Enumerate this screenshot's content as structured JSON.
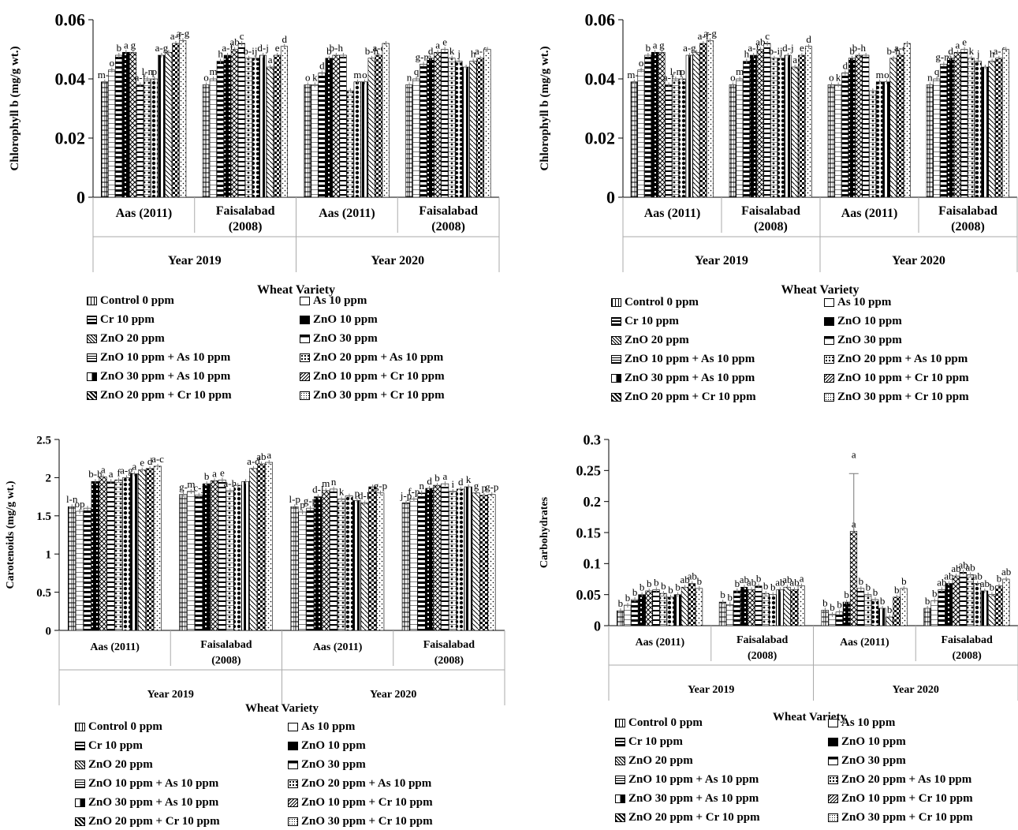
{
  "legend_labels": [
    "Control 0 ppm",
    "As 10 ppm",
    "Cr 10 ppm",
    "ZnO 10 ppm",
    "ZnO 20 ppm",
    "ZnO 30 ppm",
    "ZnO 10 ppm + As 10 ppm",
    "ZnO 20 ppm + As 10 ppm",
    "ZnO 30 ppm + As 10 ppm",
    "ZnO 10 ppm + Cr 10 ppm",
    "ZnO 20 ppm + Cr 10 ppm",
    "ZnO 30 ppm + Cr 10 ppm"
  ],
  "chart_data": [
    {
      "type": "bar",
      "ylabel": "Chlorophyll b (mg/g wt.)",
      "xlabel": "Wheat Variety",
      "ylim": [
        0,
        0.06
      ],
      "yticks": [
        "0",
        "0.02",
        "0.04",
        "0.06"
      ],
      "groups": [
        {
          "variety": "Aas (2011)",
          "year": "Year 2019",
          "values": [
            0.039,
            0.043,
            0.048,
            0.049,
            0.049,
            0.038,
            0.04,
            0.04,
            0.048,
            0.049,
            0.052,
            0.053
          ],
          "letters": [
            "m-i",
            "o",
            "b",
            "a",
            "g",
            "a-f",
            "l-n",
            "p",
            "a-g",
            "",
            "a-f",
            "a-g"
          ]
        },
        {
          "variety": "Faisalabad (2008)",
          "year": "Year 2019",
          "values": [
            0.038,
            0.04,
            0.046,
            0.048,
            0.05,
            0.052,
            0.047,
            0.047,
            0.048,
            0.044,
            0.048,
            0.051
          ],
          "letters": [
            "o",
            "m",
            "h",
            "a-f",
            "ab",
            "c",
            "b-i",
            "j",
            "d-j",
            "a",
            "e",
            "d"
          ]
        },
        {
          "variety": "Aas (2011)",
          "year": "Year 2020",
          "values": [
            0.038,
            0.038,
            0.042,
            0.047,
            0.048,
            0.048,
            0.036,
            0.039,
            0.039,
            0.047,
            0.048,
            0.052
          ],
          "letters": [
            "o",
            "k",
            "d",
            "b",
            "b-h",
            "",
            "",
            "m",
            "o",
            "b-h",
            "a-c",
            ""
          ]
        },
        {
          "variety": "Faisalabad (2008)",
          "year": "Year 2020",
          "values": [
            0.038,
            0.04,
            0.045,
            0.047,
            0.049,
            0.05,
            0.047,
            0.046,
            0.044,
            0.046,
            0.047,
            0.05
          ],
          "letters": [
            "n",
            "q",
            "g-m",
            "d",
            "a",
            "e",
            "k",
            "j",
            "",
            "h",
            "a-f",
            ""
          ]
        }
      ]
    },
    {
      "type": "bar",
      "ylabel": "Chlorophyll b (mg/g wt.)",
      "xlabel": "Wheat Variety",
      "ylim": [
        0,
        0.06
      ],
      "yticks": [
        "0",
        "0.02",
        "0.04",
        "0.06"
      ],
      "groups": [
        {
          "variety": "Aas (2011)",
          "year": "Year 2019",
          "values": [
            0.039,
            0.043,
            0.048,
            0.049,
            0.049,
            0.038,
            0.04,
            0.04,
            0.048,
            0.049,
            0.052,
            0.053
          ],
          "letters": [
            "m-i",
            "o",
            "b",
            "a",
            "g",
            "a-f",
            "l-n",
            "p",
            "a-g",
            "",
            "a-f",
            "a-g"
          ]
        },
        {
          "variety": "Faisalabad (2008)",
          "year": "Year 2019",
          "values": [
            0.038,
            0.04,
            0.046,
            0.048,
            0.05,
            0.052,
            0.047,
            0.047,
            0.048,
            0.044,
            0.048,
            0.051
          ],
          "letters": [
            "o",
            "m",
            "h",
            "a-f",
            "ab",
            "c",
            "b-i",
            "j",
            "d-j",
            "a",
            "e",
            "d"
          ]
        },
        {
          "variety": "Aas (2011)",
          "year": "Year 2020",
          "values": [
            0.038,
            0.038,
            0.042,
            0.047,
            0.048,
            0.048,
            0.036,
            0.039,
            0.039,
            0.047,
            0.048,
            0.052
          ],
          "letters": [
            "o",
            "k",
            "d",
            "b",
            "b-h",
            "",
            "",
            "m",
            "o",
            "b-h",
            "a-c",
            ""
          ]
        },
        {
          "variety": "Faisalabad (2008)",
          "year": "Year 2020",
          "values": [
            0.038,
            0.04,
            0.045,
            0.047,
            0.049,
            0.05,
            0.047,
            0.046,
            0.044,
            0.046,
            0.047,
            0.05
          ],
          "letters": [
            "n",
            "q",
            "g-m",
            "d",
            "a",
            "e",
            "k",
            "j",
            "",
            "h",
            "a-f",
            ""
          ]
        }
      ]
    },
    {
      "type": "bar",
      "ylabel": "Carotenoids (mg/g wt.)",
      "xlabel": "Wheat Variety",
      "ylim": [
        0,
        2.5
      ],
      "yticks": [
        "0",
        "0.5",
        "1",
        "1.5",
        "2",
        "2.5"
      ],
      "groups": [
        {
          "variety": "Aas (2011)",
          "year": "Year 2019",
          "values": [
            1.62,
            1.56,
            1.6,
            1.95,
            2.01,
            1.95,
            1.97,
            2.0,
            2.05,
            2.1,
            2.12,
            2.15
          ],
          "letters": [
            "l-n",
            "op",
            "",
            "b-h",
            "a",
            "a",
            "f",
            "a-g",
            "a",
            "e",
            "d",
            "a-c"
          ]
        },
        {
          "variety": "Faisalabad (2008)",
          "year": "Year 2019",
          "values": [
            1.78,
            1.82,
            1.77,
            1.92,
            1.96,
            1.97,
            1.83,
            1.9,
            1.95,
            2.12,
            2.18,
            2.2
          ],
          "letters": [
            "g-",
            "m",
            "c-j",
            "b",
            "a",
            "e",
            "a-h",
            "",
            "",
            "a-d",
            "ab",
            "a"
          ]
        },
        {
          "variety": "Aas (2011)",
          "year": "Year 2020",
          "values": [
            1.62,
            1.55,
            1.6,
            1.75,
            1.83,
            1.85,
            1.72,
            1.76,
            1.7,
            1.67,
            1.88,
            1.8
          ],
          "letters": [
            "l-p",
            "p",
            "g-p",
            "d-l",
            "m",
            "n",
            "k",
            "",
            "p",
            "d-k",
            "",
            "g-p"
          ]
        },
        {
          "variety": "Faisalabad (2008)",
          "year": "Year 2020",
          "values": [
            1.67,
            1.72,
            1.8,
            1.86,
            1.9,
            1.92,
            1.82,
            1.85,
            1.88,
            1.8,
            1.77,
            1.78
          ],
          "letters": [
            "j-p",
            "f-p",
            "n",
            "d",
            "b",
            "a",
            "i",
            "d",
            "k",
            "g",
            "p",
            "g-p"
          ]
        }
      ]
    },
    {
      "type": "bar",
      "ylabel": "Carbohydrates",
      "xlabel": "Wheat Variety",
      "ylim": [
        0,
        0.3
      ],
      "yticks": [
        "0",
        "0.05",
        "0.1",
        "0.15",
        "0.2",
        "0.25",
        "0.3"
      ],
      "groups": [
        {
          "variety": "Aas (2011)",
          "year": "Year 2019",
          "values": [
            0.024,
            0.033,
            0.042,
            0.05,
            0.056,
            0.058,
            0.052,
            0.046,
            0.05,
            0.062,
            0.068,
            0.06
          ],
          "letters": [
            "b",
            "b",
            "b",
            "b",
            "b",
            "b",
            "b",
            "b",
            "b",
            "ab",
            "ab",
            "b"
          ]
        },
        {
          "variety": "Faisalabad (2008)",
          "year": "Year 2019",
          "values": [
            0.038,
            0.034,
            0.056,
            0.062,
            0.058,
            0.064,
            0.052,
            0.05,
            0.058,
            0.062,
            0.058,
            0.064
          ],
          "letters": [
            "b",
            "b",
            "b",
            "ab",
            "ab",
            "b",
            "b",
            "b",
            "ab",
            "ab",
            "ab",
            "a"
          ]
        },
        {
          "variety": "Aas (2011)",
          "year": "Year 2020",
          "values": [
            0.025,
            0.018,
            0.022,
            0.038,
            0.152,
            0.06,
            0.05,
            0.042,
            0.028,
            0.014,
            0.046,
            0.06
          ],
          "letters": [
            "b",
            "b",
            "b",
            "b",
            "a",
            "b",
            "b",
            "b",
            "b",
            "b",
            "b",
            "b"
          ]
        },
        {
          "variety": "Faisalabad (2008)",
          "year": "Year 2020",
          "values": [
            0.028,
            0.04,
            0.058,
            0.068,
            0.08,
            0.086,
            0.082,
            0.068,
            0.056,
            0.05,
            0.064,
            0.075
          ],
          "letters": [
            "b",
            "b",
            "ab",
            "ab",
            "ab",
            "ab",
            "ab",
            "ab",
            "ab",
            "b",
            "b",
            "ab"
          ]
        }
      ],
      "error": {
        "group": 2,
        "bar": 4,
        "high": 0.245
      }
    }
  ]
}
